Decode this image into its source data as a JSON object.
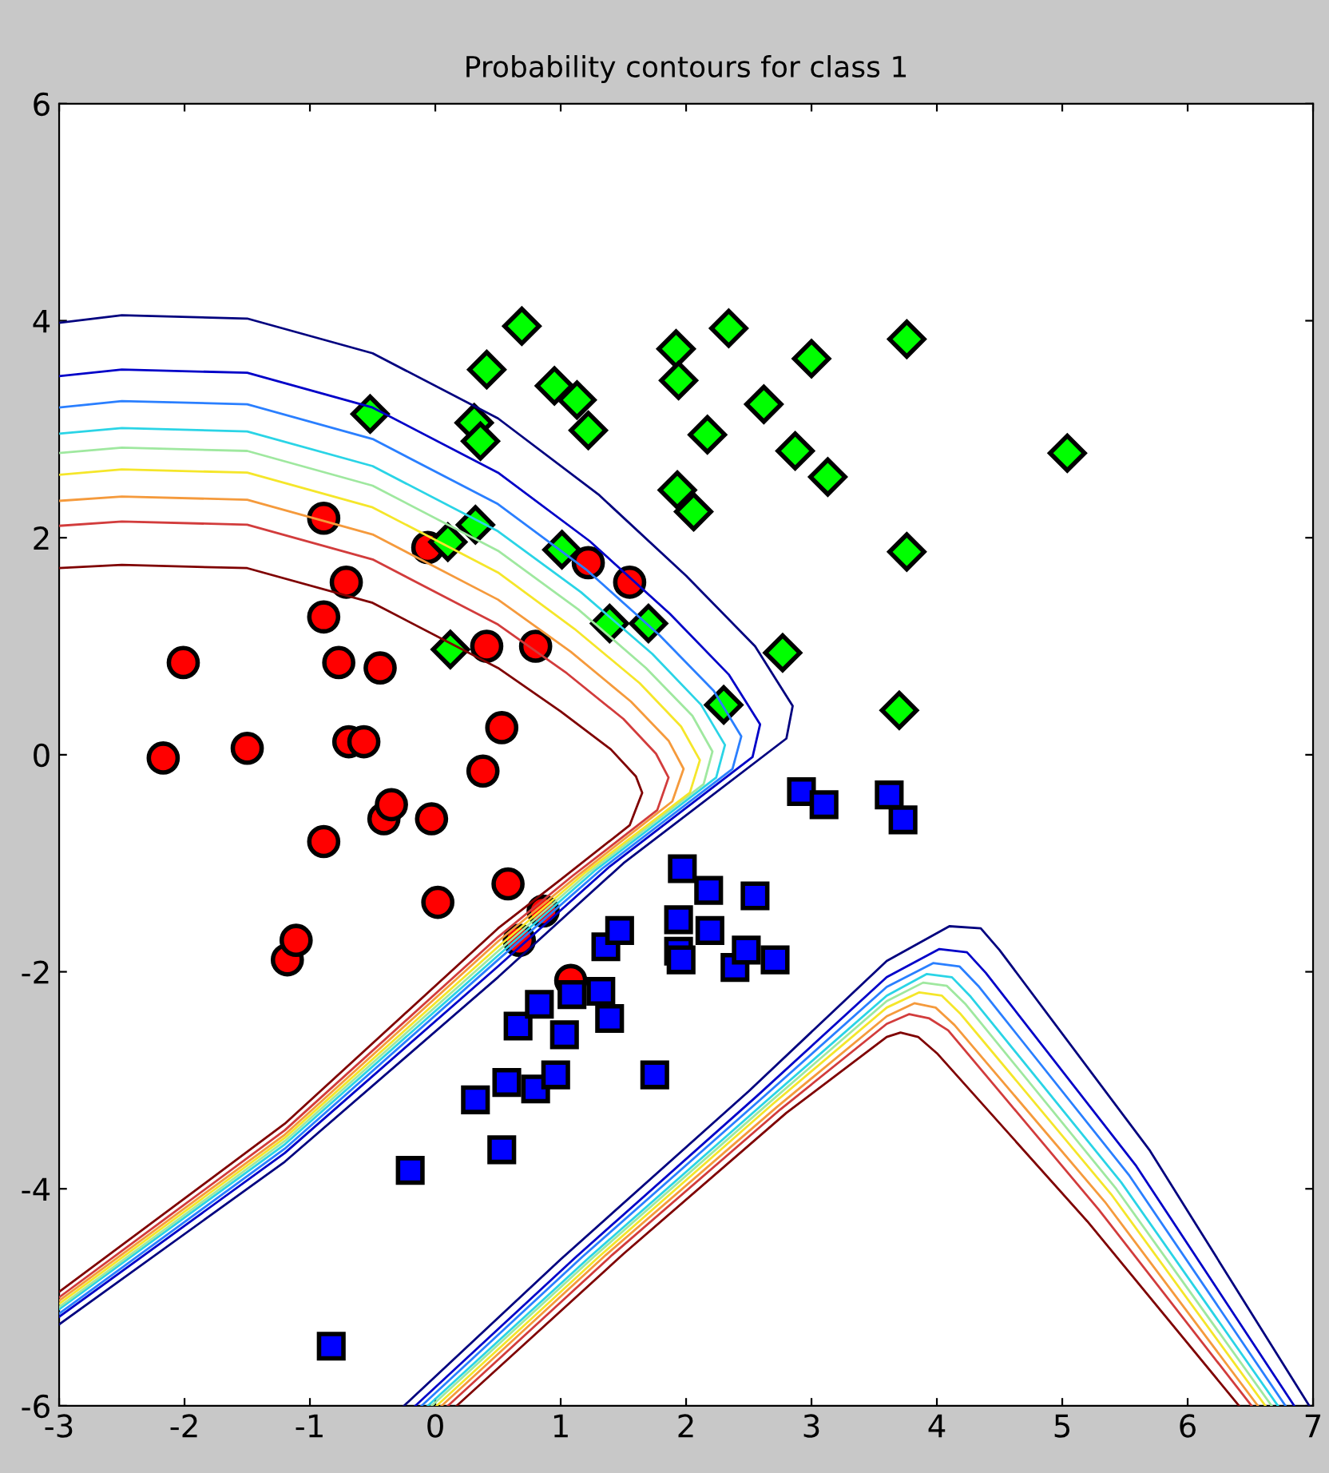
{
  "chart_data": {
    "type": "scatter",
    "title": "Probability contours for class 1",
    "xlim": [
      -3,
      7
    ],
    "ylim": [
      -6,
      6
    ],
    "xticks": [
      -3,
      -2,
      -1,
      0,
      1,
      2,
      3,
      4,
      5,
      6,
      7
    ],
    "yticks": [
      -6,
      -4,
      -2,
      0,
      2,
      4,
      6
    ],
    "grid": false,
    "series": [
      {
        "type": "line",
        "marker": "none",
        "color": "#00007f",
        "x": [
          -3,
          -2.5,
          -1.5,
          -0.5,
          0.5,
          1.3,
          2.0,
          2.55,
          2.85,
          2.8,
          1.5,
          0.5,
          -1.2,
          -3
        ],
        "values": [
          3.98,
          4.05,
          4.02,
          3.7,
          3.1,
          2.4,
          1.65,
          1.0,
          0.45,
          0.15,
          -1.0,
          -2.05,
          -3.75,
          -5.25
        ]
      },
      {
        "type": "line",
        "marker": "none",
        "color": "#0000c8",
        "x": [
          -3,
          -2.5,
          -1.5,
          -0.5,
          0.5,
          1.23,
          1.87,
          2.34,
          2.59,
          2.53,
          1.39,
          0.5,
          -1.2,
          -3
        ],
        "values": [
          3.49,
          3.55,
          3.52,
          3.2,
          2.6,
          1.97,
          1.3,
          0.74,
          0.28,
          -0.02,
          -1.03,
          -1.95,
          -3.67,
          -5.18
        ]
      },
      {
        "type": "line",
        "marker": "none",
        "color": "#2a7fff",
        "x": [
          -3,
          -2.5,
          -1.5,
          -0.5,
          0.5,
          1.2,
          1.79,
          2.22,
          2.44,
          2.37,
          1.33,
          0.5,
          -1.2,
          -3
        ],
        "values": [
          3.2,
          3.26,
          3.23,
          2.91,
          2.31,
          1.71,
          1.1,
          0.59,
          0.17,
          -0.13,
          -1.05,
          -1.89,
          -3.63,
          -5.15
        ]
      },
      {
        "type": "line",
        "marker": "none",
        "color": "#2ad4e6",
        "x": [
          -3,
          -2.5,
          -1.5,
          -0.5,
          0.5,
          1.16,
          1.73,
          2.12,
          2.31,
          2.24,
          1.27,
          0.5,
          -1.2,
          -3
        ],
        "values": [
          2.96,
          3.01,
          2.98,
          2.66,
          2.06,
          1.5,
          0.93,
          0.46,
          0.09,
          -0.21,
          -1.07,
          -1.85,
          -3.59,
          -5.11
        ]
      },
      {
        "type": "line",
        "marker": "none",
        "color": "#9fe89f",
        "x": [
          -3,
          -2.5,
          -1.5,
          -0.5,
          0.5,
          1.14,
          1.68,
          2.05,
          2.21,
          2.14,
          1.23,
          0.5,
          -1.2,
          -3
        ],
        "values": [
          2.78,
          2.83,
          2.8,
          2.48,
          1.88,
          1.34,
          0.8,
          0.36,
          0.03,
          -0.27,
          -1.08,
          -1.81,
          -3.56,
          -5.09
        ]
      },
      {
        "type": "line",
        "marker": "none",
        "color": "#f5e62a",
        "x": [
          -3,
          -2.5,
          -1.5,
          -0.5,
          0.5,
          1.11,
          1.63,
          1.96,
          2.11,
          2.03,
          1.19,
          0.5,
          -1.2,
          -3
        ],
        "values": [
          2.58,
          2.63,
          2.6,
          2.28,
          1.68,
          1.16,
          0.66,
          0.26,
          -0.05,
          -0.35,
          -1.09,
          -1.77,
          -3.53,
          -5.06
        ]
      },
      {
        "type": "line",
        "marker": "none",
        "color": "#f59a3c",
        "x": [
          -3,
          -2.5,
          -1.5,
          -0.5,
          0.5,
          1.08,
          1.56,
          1.86,
          1.98,
          1.89,
          1.14,
          0.5,
          -1.2,
          -3
        ],
        "values": [
          2.34,
          2.38,
          2.35,
          2.03,
          1.43,
          0.95,
          0.49,
          0.13,
          -0.13,
          -0.43,
          -1.11,
          -1.72,
          -3.5,
          -5.03
        ]
      },
      {
        "type": "line",
        "marker": "none",
        "color": "#d23c3c",
        "x": [
          -3,
          -2.5,
          -1.5,
          -0.5,
          0.5,
          1.05,
          1.5,
          1.76,
          1.86,
          1.77,
          1.09,
          0.5,
          -1.2,
          -3
        ],
        "values": [
          2.11,
          2.15,
          2.12,
          1.8,
          1.2,
          0.75,
          0.33,
          0.01,
          -0.21,
          -0.51,
          -1.12,
          -1.68,
          -3.46,
          -5.0
        ]
      },
      {
        "type": "line",
        "marker": "none",
        "color": "#7f0000",
        "x": [
          -3,
          -2.5,
          -1.5,
          -0.5,
          0.5,
          1.0,
          1.4,
          1.6,
          1.65,
          1.55,
          1.0,
          0.5,
          -1.2,
          -3
        ],
        "values": [
          1.72,
          1.75,
          1.72,
          1.4,
          0.8,
          0.4,
          0.05,
          -0.2,
          -0.35,
          -0.65,
          -1.15,
          -1.6,
          -3.4,
          -4.95
        ]
      },
      {
        "type": "line",
        "marker": "none",
        "color": "#00007f",
        "x": [
          -0.25,
          1,
          2.5,
          3.6,
          4.1,
          4.35,
          4.5,
          5.7,
          6.97
        ],
        "values": [
          -6,
          -4.65,
          -3.1,
          -1.9,
          -1.58,
          -1.6,
          -1.8,
          -3.65,
          -6
        ]
      },
      {
        "type": "line",
        "marker": "none",
        "color": "#0000c8",
        "x": [
          -0.16,
          1.11,
          2.57,
          3.6,
          4.02,
          4.24,
          4.39,
          5.59,
          6.85
        ],
        "values": [
          -6,
          -4.64,
          -3.14,
          -2.05,
          -1.79,
          -1.82,
          -2.01,
          -3.79,
          -6
        ]
      },
      {
        "type": "line",
        "marker": "none",
        "color": "#2a7fff",
        "x": [
          -0.11,
          1.17,
          2.6,
          3.6,
          3.97,
          4.18,
          4.33,
          5.53,
          6.78
        ],
        "values": [
          -6,
          -4.63,
          -3.17,
          -2.14,
          -1.92,
          -1.95,
          -2.13,
          -3.87,
          -6
        ]
      },
      {
        "type": "line",
        "marker": "none",
        "color": "#2ad4e6",
        "x": [
          -0.06,
          1.23,
          2.64,
          3.6,
          3.92,
          4.12,
          4.27,
          5.47,
          6.72
        ],
        "values": [
          -6,
          -4.63,
          -3.19,
          -2.22,
          -2.02,
          -2.05,
          -2.23,
          -3.94,
          -6
        ]
      },
      {
        "type": "line",
        "marker": "none",
        "color": "#9fe89f",
        "x": [
          -0.03,
          1.27,
          2.66,
          3.6,
          3.89,
          4.08,
          4.23,
          5.43,
          6.67
        ],
        "values": [
          -6,
          -4.62,
          -3.21,
          -2.27,
          -2.1,
          -2.13,
          -2.3,
          -4.0,
          -6
        ]
      },
      {
        "type": "line",
        "marker": "none",
        "color": "#f5e62a",
        "x": [
          0.01,
          1.31,
          2.69,
          3.6,
          3.86,
          4.04,
          4.19,
          5.39,
          6.62
        ],
        "values": [
          -6,
          -4.62,
          -3.22,
          -2.33,
          -2.19,
          -2.22,
          -2.39,
          -4.05,
          -6
        ]
      },
      {
        "type": "line",
        "marker": "none",
        "color": "#f59a3c",
        "x": [
          0.05,
          1.36,
          2.72,
          3.6,
          3.82,
          3.99,
          4.14,
          5.34,
          6.56
        ],
        "values": [
          -6,
          -4.61,
          -3.25,
          -2.41,
          -2.29,
          -2.33,
          -2.49,
          -4.12,
          -6
        ]
      },
      {
        "type": "line",
        "marker": "none",
        "color": "#d23c3c",
        "x": [
          0.1,
          1.41,
          2.75,
          3.6,
          3.78,
          3.94,
          4.09,
          5.29,
          6.51
        ],
        "values": [
          -6,
          -4.61,
          -3.27,
          -2.48,
          -2.39,
          -2.43,
          -2.54,
          -4.19,
          -6
        ]
      },
      {
        "type": "line",
        "marker": "none",
        "color": "#7f0000",
        "x": [
          0.17,
          1.5,
          2.8,
          3.6,
          3.71,
          3.85,
          4.0,
          5.2,
          6.41
        ],
        "values": [
          -6,
          -4.6,
          -3.3,
          -2.6,
          -2.56,
          -2.6,
          -2.75,
          -4.3,
          -6
        ]
      },
      {
        "marker": "circle",
        "color": "#ff0000",
        "x": [
          -2.17,
          -2.01,
          -1.5,
          -1.18,
          -1.11,
          -0.89,
          -0.89,
          -0.89,
          -0.77,
          -0.71,
          -0.69,
          -0.57,
          -0.44,
          -0.41,
          -0.35,
          -0.06,
          -0.03,
          0.02,
          0.38,
          0.41,
          0.53,
          0.58,
          0.67,
          0.8,
          0.86,
          1.08,
          1.22,
          1.55
        ],
        "values": [
          -0.03,
          0.85,
          0.06,
          -1.89,
          -1.71,
          2.18,
          1.27,
          -0.8,
          0.85,
          1.59,
          0.12,
          0.12,
          0.8,
          -0.59,
          -0.46,
          1.91,
          -0.59,
          -1.36,
          -0.15,
          1.0,
          0.25,
          -1.19,
          -1.71,
          1.0,
          -1.44,
          -2.08,
          1.77,
          1.59
        ]
      },
      {
        "marker": "diamond",
        "color": "#00ff00",
        "x": [
          -0.52,
          0.69,
          0.41,
          0.31,
          0.36,
          0.32,
          0.1,
          0.12,
          0.95,
          1.13,
          1.22,
          1.01,
          1.39,
          1.7,
          1.92,
          1.94,
          2.34,
          2.17,
          1.93,
          2.06,
          2.62,
          3.0,
          2.87,
          3.13,
          3.76,
          5.04,
          2.77,
          3.76,
          3.7,
          2.3
        ],
        "values": [
          3.14,
          3.95,
          3.55,
          3.06,
          2.89,
          2.12,
          1.96,
          0.97,
          3.4,
          3.27,
          2.99,
          1.89,
          1.21,
          1.21,
          3.74,
          3.45,
          3.93,
          2.95,
          2.44,
          2.24,
          3.23,
          3.65,
          2.8,
          2.56,
          3.83,
          2.78,
          0.94,
          1.87,
          0.41,
          0.46
        ]
      },
      {
        "marker": "square",
        "color": "#0000ff",
        "x": [
          -0.83,
          -0.2,
          0.32,
          0.53,
          0.57,
          0.8,
          0.66,
          0.83,
          0.96,
          1.03,
          1.09,
          1.32,
          1.39,
          1.36,
          1.47,
          1.75,
          1.97,
          2.18,
          1.94,
          1.94,
          1.96,
          2.19,
          2.55,
          2.39,
          2.48,
          2.71,
          2.92,
          3.1,
          3.62,
          3.73
        ],
        "values": [
          -5.45,
          -3.83,
          -3.18,
          -3.64,
          -3.02,
          -3.08,
          -2.5,
          -2.3,
          -2.95,
          -2.58,
          -2.21,
          -2.18,
          -2.43,
          -1.77,
          -1.62,
          -2.95,
          -1.05,
          -1.25,
          -1.52,
          -1.81,
          -1.89,
          -1.62,
          -1.3,
          -1.96,
          -1.8,
          -1.89,
          -0.34,
          -0.46,
          -0.37,
          -0.6
        ]
      }
    ]
  }
}
